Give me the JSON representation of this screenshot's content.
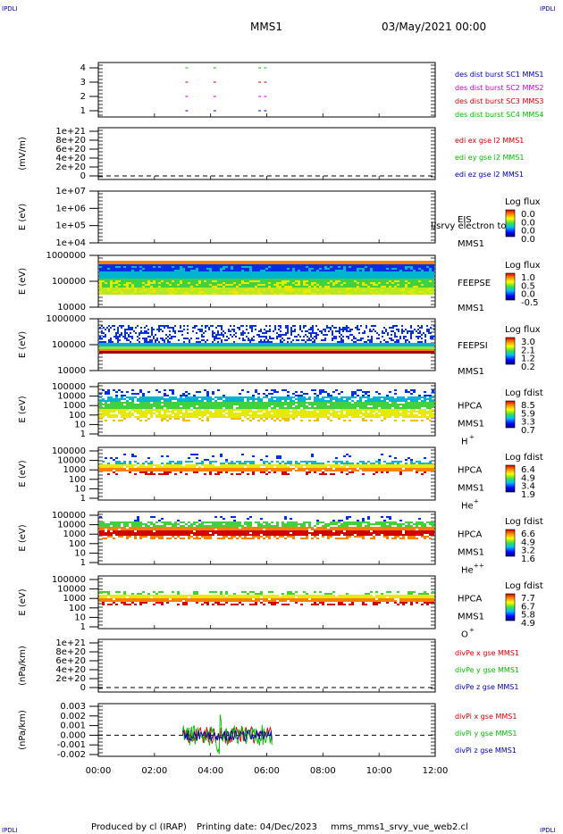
{
  "page": {
    "corner_label": "IPDLI",
    "mission": "MMS1",
    "date_text": "03/May/2021 00:00",
    "footer_producer": "Produced by cl (IRAP)",
    "footer_print": "Printing date: 04/Dec/2023",
    "footer_file": "mms_mms1_srvy_vue_web2.cl",
    "x_ticks": [
      "00:00",
      "02:00",
      "04:00",
      "06:00",
      "08:00",
      "10:00",
      "12:00"
    ]
  },
  "colors": {
    "c1": "#0000aa",
    "c2": "#cc00cc",
    "c3": "#cc0000",
    "c4": "#00bb00",
    "spec_blue": "#0030e0",
    "spec_cyan": "#00b4d0",
    "spec_green": "#40d040",
    "spec_yellow": "#e8e800",
    "spec_orange": "#ff8000",
    "spec_red": "#d00000"
  },
  "panels": {
    "burst": {
      "yticks": [
        "4",
        "3",
        "2",
        "1"
      ],
      "labels": [
        "des dist burst SC1 MMS1",
        "des dist burst SC2 MMS2",
        "des dist burst SC3 MMS3",
        "des dist burst SC4 MMS4"
      ]
    },
    "edi": {
      "ylabel": "(mV/m)",
      "yticks": [
        "1e+21",
        "8e+20",
        "6e+20",
        "4e+20",
        "2e+20",
        "0"
      ],
      "labels": [
        "edi ex gse l2 MMS1",
        "edi ey gse l2 MMS1",
        "edi ez gse l2 MMS1"
      ]
    },
    "eis": {
      "ylabel": "E (eV)",
      "yticks": [
        "1e+07",
        "1e+06",
        "1e+05",
        "1e+04"
      ],
      "inst": "EIS",
      "inst2": "MMS1",
      "overlay": "l/srvy electron to",
      "cb_title": "Log flux",
      "cb_ticks": [
        "0.0",
        "0.0",
        "0.0",
        "0.0"
      ]
    },
    "feepse": {
      "ylabel": "E (eV)",
      "yticks": [
        "1000000",
        "100000",
        "10000"
      ],
      "inst": "FEEPSE",
      "inst2": "MMS1",
      "cb_title": "Log flux",
      "cb_ticks": [
        "1.0",
        "0.5",
        "0.0",
        "-0.5"
      ]
    },
    "feepsi": {
      "ylabel": "E (eV)",
      "yticks": [
        "1000000",
        "100000",
        "10000"
      ],
      "inst": "FEEPSI",
      "inst2": "MMS1",
      "cb_title": "Log flux",
      "cb_ticks": [
        "3.0",
        "2.1",
        "1.2",
        "0.2"
      ]
    },
    "hpca_h": {
      "ylabel": "E (eV)",
      "yticks": [
        "100000",
        "10000",
        "1000",
        "100",
        "10",
        "1"
      ],
      "inst": "HPCA",
      "inst2": "MMS1",
      "species": "H",
      "charge": "+",
      "cb_title": "Log fdist",
      "cb_ticks": [
        "8.5",
        "5.9",
        "3.3",
        "0.7"
      ]
    },
    "hpca_he": {
      "ylabel": "E (eV)",
      "yticks": [
        "100000",
        "10000",
        "1000",
        "100",
        "10",
        "1"
      ],
      "inst": "HPCA",
      "inst2": "MMS1",
      "species": "He",
      "charge": "+",
      "cb_title": "Log fdist",
      "cb_ticks": [
        "6.4",
        "4.9",
        "3.4",
        "1.9"
      ]
    },
    "hpca_he2": {
      "ylabel": "E (eV)",
      "yticks": [
        "100000",
        "10000",
        "1000",
        "100",
        "10",
        "1"
      ],
      "inst": "HPCA",
      "inst2": "MMS1",
      "species": "He",
      "charge": "++",
      "cb_title": "Log fdist",
      "cb_ticks": [
        "6.6",
        "4.9",
        "3.2",
        "1.6"
      ]
    },
    "hpca_o": {
      "ylabel": "E (eV)",
      "yticks": [
        "100000",
        "10000",
        "1000",
        "100",
        "10",
        "1"
      ],
      "inst": "HPCA",
      "inst2": "MMS1",
      "species": "O",
      "charge": "+",
      "cb_title": "Log fdist",
      "cb_ticks": [
        "7.7",
        "6.7",
        "5.8",
        "4.9"
      ]
    },
    "divpe": {
      "ylabel": "(nPa/km)",
      "yticks": [
        "1e+21",
        "8e+20",
        "6e+20",
        "4e+20",
        "2e+20",
        "0"
      ],
      "labels": [
        "divPe x gse MMS1",
        "divPe y gse MMS1",
        "divPe z gse MMS1"
      ]
    },
    "divpi": {
      "ylabel": "(nPa/km)",
      "yticks": [
        "0.003",
        "0.002",
        "0.001",
        "0.000",
        "-0.001",
        "-0.002"
      ],
      "labels": [
        "divPi x gse MMS1",
        "divPi y gse MMS1",
        "divPi z gse MMS1"
      ]
    }
  },
  "chart_data": {
    "type": "heatmap",
    "title": "MMS1",
    "x_range": [
      "00:00",
      "12:00"
    ],
    "xticks": [
      "00:00",
      "02:00",
      "04:00",
      "06:00",
      "08:00",
      "10:00",
      "12:00"
    ],
    "burst_intervals_hours": [
      [
        3.1,
        3.15
      ],
      [
        4.1,
        4.15
      ],
      [
        5.7,
        5.75
      ],
      [
        5.9,
        5.95
      ]
    ],
    "divpi_interval_hours": [
      3.0,
      6.2
    ],
    "divpi_ylim": [
      -0.002,
      0.003
    ]
  }
}
